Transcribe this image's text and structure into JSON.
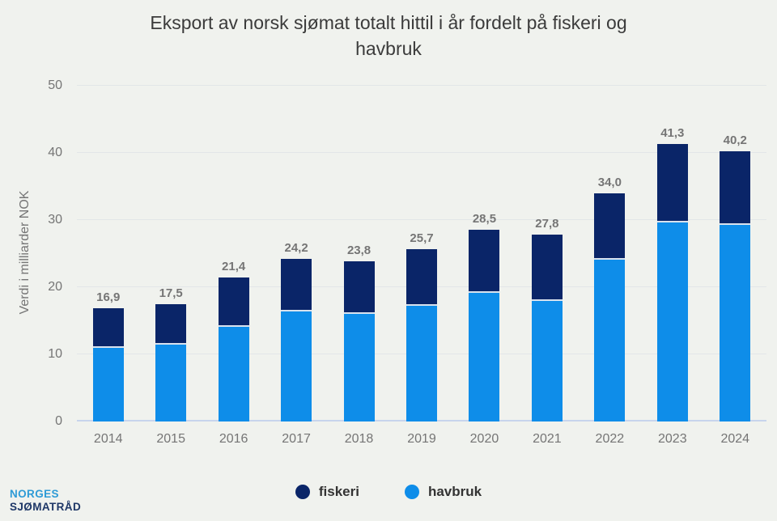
{
  "chart_data": {
    "type": "bar",
    "stacked": true,
    "title": "Eksport av norsk sjømat totalt hittil i år fordelt på fiskeri og\nhavbruk",
    "ylabel": "Verdi i milliarder NOK",
    "categories": [
      "2014",
      "2015",
      "2016",
      "2017",
      "2018",
      "2019",
      "2020",
      "2021",
      "2022",
      "2023",
      "2024"
    ],
    "series": [
      {
        "name": "fiskeri",
        "color": "#0a2568",
        "values": [
          5.9,
          6.0,
          7.3,
          7.8,
          7.8,
          8.5,
          9.3,
          9.8,
          9.9,
          11.6,
          10.9
        ]
      },
      {
        "name": "havbruk",
        "color": "#0e8de9",
        "values": [
          11.0,
          11.5,
          14.1,
          16.4,
          16.0,
          17.2,
          19.2,
          18.0,
          24.1,
          29.7,
          29.3
        ]
      }
    ],
    "totals": [
      16.9,
      17.5,
      21.4,
      24.2,
      23.8,
      25.7,
      28.5,
      27.8,
      34.0,
      41.3,
      40.2
    ],
    "total_labels": [
      "16,9",
      "17,5",
      "21,4",
      "24,2",
      "23,8",
      "25,7",
      "28,5",
      "27,8",
      "34,0",
      "41,3",
      "40,2"
    ],
    "ylim": [
      0,
      50
    ],
    "yticks": [
      0,
      10,
      20,
      30,
      40,
      50
    ],
    "grid": true,
    "legend_position": "bottom"
  },
  "logo": {
    "line1": "NORGES",
    "line2": "SJØMATRÅD"
  },
  "colors": {
    "background": "#f0f2ee",
    "title_text": "#3b3b3b",
    "axis_text": "#757575",
    "value_label": "#757575",
    "legend_text": "#333333",
    "gridline": "#e2e6e8",
    "baseline": "#c7d4ec",
    "separator": "#d9e2ee",
    "fiskeri": "#0a2568",
    "havbruk": "#0e8de9",
    "logo_top": "#2e9bd6",
    "logo_bottom": "#1e3767"
  }
}
